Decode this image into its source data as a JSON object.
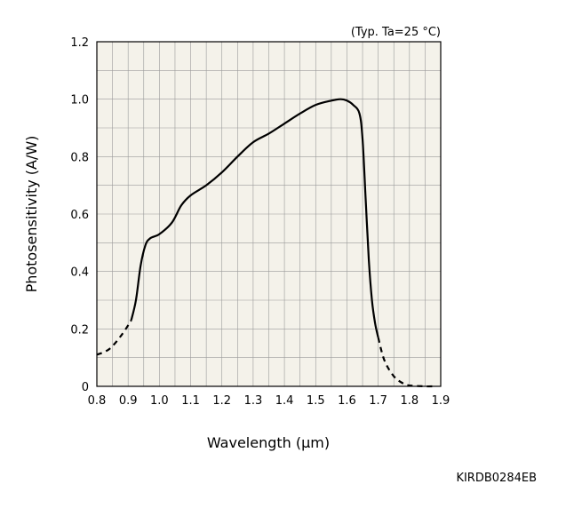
{
  "chart_data": {
    "type": "line",
    "title": "",
    "condition_note": "(Typ. Ta=25 °C)",
    "xlabel": "Wavelength (µm)",
    "ylabel": "Photosensitivity (A/W)",
    "xlim": [
      0.8,
      1.9
    ],
    "ylim": [
      0,
      1.2
    ],
    "x_ticks": [
      0.8,
      0.9,
      1.0,
      1.1,
      1.2,
      1.3,
      1.4,
      1.5,
      1.6,
      1.7,
      1.8,
      1.9
    ],
    "x_tick_labels": [
      "0.8",
      "0.9",
      "1.0",
      "1.1",
      "1.2",
      "1.3",
      "1.4",
      "1.5",
      "1.6",
      "1.7",
      "1.8",
      "1.9"
    ],
    "y_ticks": [
      0,
      0.2,
      0.4,
      0.6,
      0.8,
      1.0,
      1.2
    ],
    "y_tick_labels": [
      "0",
      "0.2",
      "0.4",
      "0.6",
      "0.8",
      "1.0",
      "1.2"
    ],
    "grid": true,
    "grid_minor_x": 0.05,
    "grid_minor_y": 0.1,
    "colors": {
      "line": "#000000",
      "plot_background": "#f4f2ea",
      "grid": "#9a9a9a"
    },
    "series": [
      {
        "style": "dashed",
        "x": [
          0.8,
          0.84,
          0.88,
          0.91
        ],
        "y": [
          0.11,
          0.13,
          0.18,
          0.23
        ]
      },
      {
        "style": "solid",
        "x": [
          0.91,
          0.925,
          0.94,
          0.955,
          0.97,
          1.0,
          1.04,
          1.07,
          1.1,
          1.15,
          1.2,
          1.25,
          1.3,
          1.35,
          1.4,
          1.45,
          1.5,
          1.55,
          1.58,
          1.6,
          1.62,
          1.64,
          1.65,
          1.66,
          1.67,
          1.68,
          1.69,
          1.7
        ],
        "y": [
          0.23,
          0.3,
          0.42,
          0.49,
          0.515,
          0.53,
          0.57,
          0.63,
          0.665,
          0.7,
          0.745,
          0.8,
          0.85,
          0.88,
          0.915,
          0.95,
          0.98,
          0.995,
          1.0,
          0.995,
          0.98,
          0.95,
          0.86,
          0.65,
          0.44,
          0.3,
          0.22,
          0.17
        ]
      },
      {
        "style": "dashed",
        "x": [
          1.7,
          1.72,
          1.75,
          1.78,
          1.8,
          1.85,
          1.88
        ],
        "y": [
          0.17,
          0.09,
          0.035,
          0.01,
          0.003,
          0.0,
          0.0
        ]
      }
    ]
  },
  "footer": {
    "document_code": "KIRDB0284EB"
  }
}
